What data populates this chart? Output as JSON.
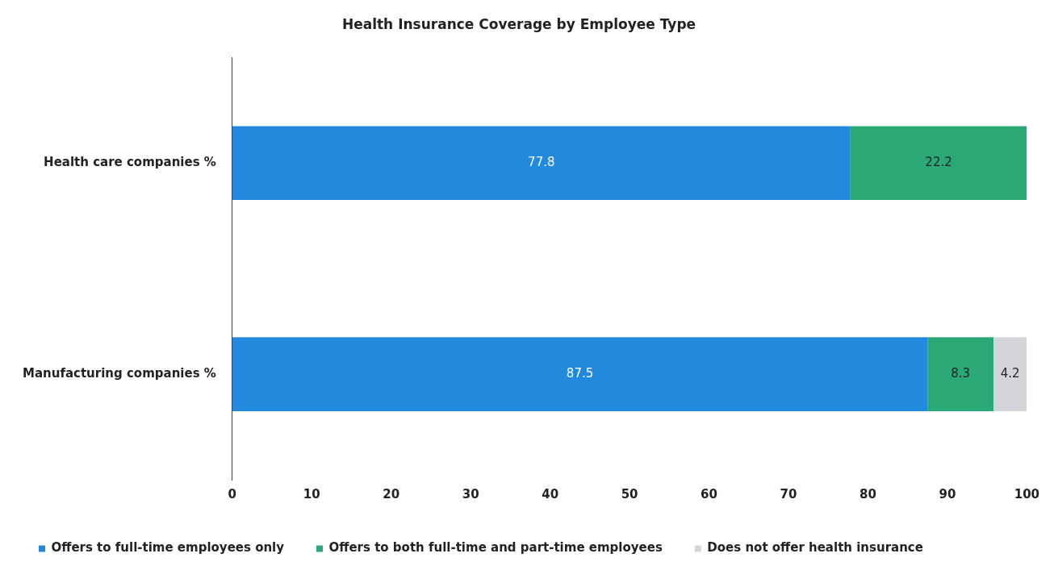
{
  "chart_data": {
    "type": "bar",
    "title": "Health Insurance Coverage by Employee Type",
    "orientation": "horizontal",
    "stacked": true,
    "categories": [
      "Health care companies %",
      "Manufacturing companies %"
    ],
    "series": [
      {
        "name": "Offers to full-time employees only",
        "color": "#2389dc",
        "values": [
          77.8,
          87.5
        ]
      },
      {
        "name": "Offers to both full-time and part-time employees",
        "color": "#2aa876",
        "values": [
          22.2,
          8.3
        ]
      },
      {
        "name": "Does not offer health insurance",
        "color": "#d3d5da",
        "values": [
          null,
          4.2
        ]
      }
    ],
    "xlim": [
      0,
      100
    ],
    "xticks": [
      0,
      10,
      20,
      30,
      40,
      50,
      60,
      70,
      80,
      90,
      100
    ],
    "grid": false,
    "legend": "bottom",
    "data_labels": true
  }
}
